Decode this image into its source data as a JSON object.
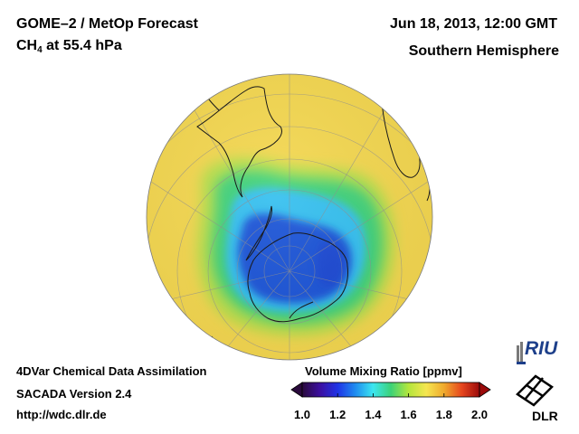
{
  "header": {
    "title": "GOME–2 / MetOp Forecast",
    "species": "CH",
    "species_sub": "4",
    "level": " at 55.4 hPa",
    "datetime": "Jun 18, 2013, 12:00 GMT",
    "hemisphere": "Southern Hemisphere"
  },
  "footer": {
    "line1": "4DVar Chemical Data Assimilation",
    "line2": "SACADA Version 2.4",
    "line3": "http://wdc.dlr.de"
  },
  "colorbar": {
    "title": "Volume Mixing Ratio [ppmv]",
    "ticks": [
      "1.0",
      "1.2",
      "1.4",
      "1.6",
      "1.8",
      "2.0"
    ],
    "min": 1.0,
    "max": 2.0,
    "colors": [
      "#2a0a3c",
      "#3c0fa0",
      "#1f33e6",
      "#1f8cf0",
      "#3ce6f0",
      "#3cd278",
      "#b4e63c",
      "#f5e650",
      "#f0aa2d",
      "#e6461e",
      "#9b0a0a"
    ]
  },
  "map": {
    "colors": {
      "background": "#f5d850",
      "low": "#1a55d8",
      "mid": "#36c0f0",
      "band": "#3fd27a",
      "ring": "#b8e04c"
    }
  },
  "logos": {
    "riu": "RIU",
    "dlr": "DLR"
  }
}
